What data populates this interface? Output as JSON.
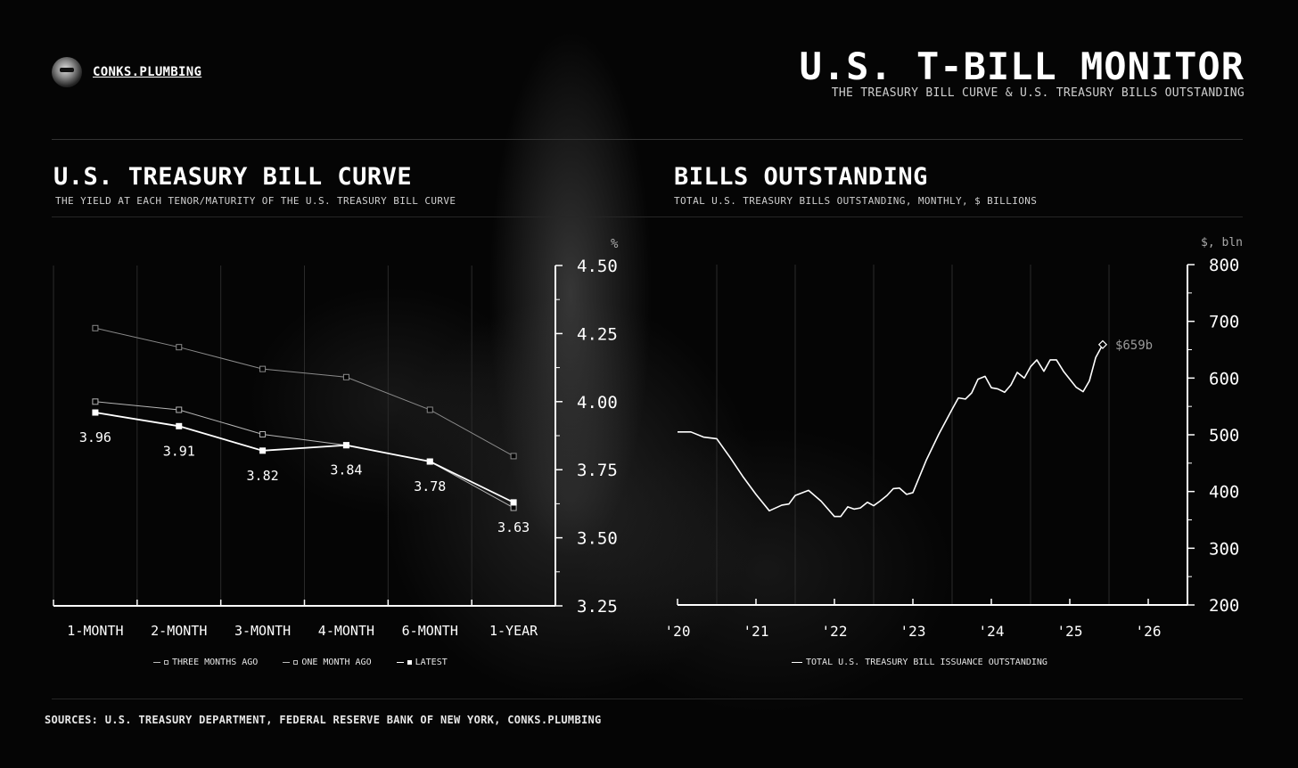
{
  "header": {
    "brand": "CONKS.PLUMBING",
    "title": "U.S. T-BILL MONITOR",
    "subtitle": "THE TREASURY BILL CURVE & U.S. TREASURY BILLS OUTSTANDING"
  },
  "footer": {
    "sources": "SOURCES: U.S. TREASURY DEPARTMENT, FEDERAL RESERVE BANK OF NEW YORK, CONKS.PLUMBING"
  },
  "colors": {
    "background": "#000000",
    "latest": "#ffffff",
    "one_month_ago": "#b5b5b5",
    "three_months_ago": "#8a8a8a",
    "outstanding": "#ffffff"
  },
  "chart_data": [
    {
      "type": "line",
      "title": "U.S. TREASURY BILL CURVE",
      "subtitle": "THE YIELD AT EACH TENOR/MATURITY OF THE U.S. TREASURY BILL CURVE",
      "ylabel": "%",
      "categories": [
        "1-MONTH",
        "2-MONTH",
        "3-MONTH",
        "4-MONTH",
        "6-MONTH",
        "1-YEAR"
      ],
      "ylim": [
        3.25,
        4.5
      ],
      "yticks": [
        "4.50",
        "4.25",
        "4.00",
        "3.75",
        "3.50",
        "3.25"
      ],
      "grid": "vertical",
      "legend_position": "bottom",
      "series": [
        {
          "name": "THREE MONTHS AGO",
          "values": [
            4.27,
            4.2,
            4.12,
            4.09,
            3.97,
            3.8
          ]
        },
        {
          "name": "ONE MONTH AGO",
          "values": [
            4.0,
            3.97,
            3.88,
            3.84,
            3.78,
            3.61
          ]
        },
        {
          "name": "LATEST",
          "values": [
            3.96,
            3.91,
            3.82,
            3.84,
            3.78,
            3.63
          ],
          "labels": [
            "3.96",
            "3.91",
            "3.82",
            "3.84",
            "3.78",
            "3.63"
          ]
        }
      ]
    },
    {
      "type": "line",
      "title": "BILLS OUTSTANDING",
      "subtitle": "TOTAL U.S. TREASURY BILLS OUTSTANDING, MONTHLY, $ BILLIONS",
      "ylabel": "$, bln",
      "ylim": [
        200,
        800
      ],
      "yticks": [
        "800",
        "700",
        "600",
        "500",
        "400",
        "300",
        "200"
      ],
      "xlim": [
        2020.0,
        2026.5
      ],
      "xticks": [
        {
          "x": 2020,
          "label": "'20"
        },
        {
          "x": 2021,
          "label": "'21"
        },
        {
          "x": 2022,
          "label": "'22"
        },
        {
          "x": 2023,
          "label": "'23"
        },
        {
          "x": 2024,
          "label": "'24"
        },
        {
          "x": 2025,
          "label": "'25"
        },
        {
          "x": 2026,
          "label": "'26"
        }
      ],
      "grid": "vertical",
      "legend_position": "bottom",
      "end_label": "$659b",
      "series": [
        {
          "name": "TOTAL U.S. TREASURY BILL ISSUANCE OUTSTANDING",
          "x": [
            2020.0,
            2020.17,
            2020.33,
            2020.5,
            2020.67,
            2020.83,
            2021.0,
            2021.17,
            2021.33,
            2021.42,
            2021.5,
            2021.67,
            2021.83,
            2022.0,
            2022.08,
            2022.17,
            2022.25,
            2022.33,
            2022.42,
            2022.5,
            2022.58,
            2022.67,
            2022.75,
            2022.83,
            2022.92,
            2023.0,
            2023.17,
            2023.33,
            2023.5,
            2023.58,
            2023.67,
            2023.75,
            2023.83,
            2023.92,
            2024.0,
            2024.08,
            2024.17,
            2024.25,
            2024.33,
            2024.42,
            2024.5,
            2024.58,
            2024.67,
            2024.75,
            2024.83,
            2024.92,
            2025.0,
            2025.08,
            2025.17,
            2025.25,
            2025.33,
            2025.42
          ],
          "values": [
            505,
            505,
            496,
            493,
            460,
            427,
            395,
            366,
            376,
            378,
            393,
            402,
            383,
            356,
            356,
            373,
            369,
            371,
            381,
            375,
            383,
            393,
            405,
            406,
            395,
            398,
            455,
            501,
            545,
            565,
            563,
            574,
            598,
            603,
            583,
            581,
            575,
            588,
            610,
            600,
            620,
            632,
            612,
            632,
            632,
            612,
            598,
            584,
            576,
            595,
            636,
            659
          ]
        }
      ]
    }
  ]
}
